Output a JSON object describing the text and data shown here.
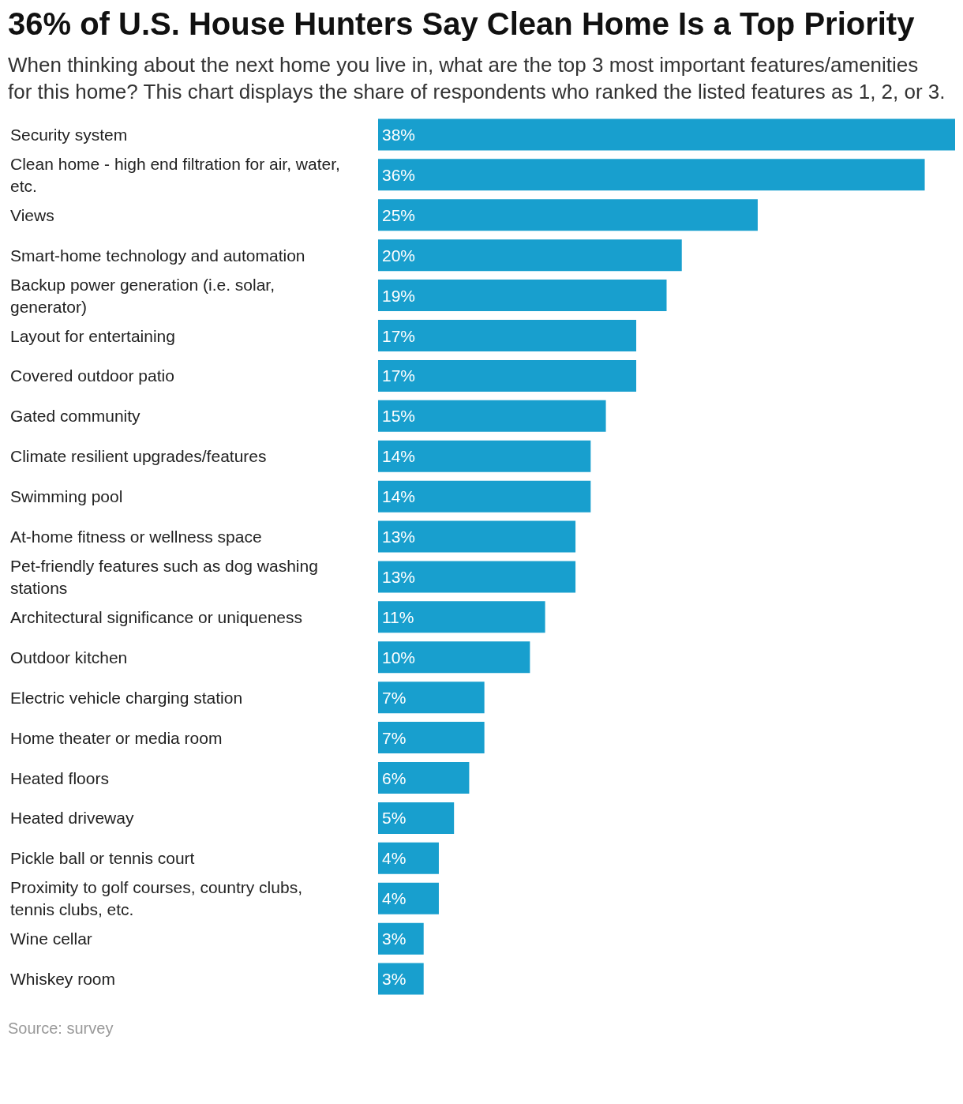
{
  "chart_data": {
    "type": "bar",
    "orientation": "horizontal",
    "title": "36% of U.S. House Hunters Say Clean Home Is a Top Priority",
    "subtitle": "When thinking about the next home you live in, what are the top 3 most important features/amenities for this home? This chart displays the share of respondents who ranked the listed features as 1, 2, or 3.",
    "categories": [
      "Security system",
      "Clean home - high end filtration for air, water, etc.",
      "Views",
      "Smart-home technology and automation",
      "Backup power generation (i.e. solar, generator)",
      "Layout for entertaining",
      "Covered outdoor patio",
      "Gated community",
      "Climate resilient upgrades/features",
      "Swimming pool",
      "At-home fitness or wellness space",
      "Pet-friendly features such as dog washing stations",
      "Architectural significance or uniqueness",
      "Outdoor kitchen",
      "Electric vehicle charging station",
      "Home theater or media room",
      "Heated floors",
      "Heated driveway",
      "Pickle ball or tennis court",
      "Proximity to golf courses, country clubs, tennis clubs, etc.",
      "Wine cellar",
      "Whiskey room"
    ],
    "values": [
      38,
      36,
      25,
      20,
      19,
      17,
      17,
      15,
      14,
      14,
      13,
      13,
      11,
      10,
      7,
      7,
      6,
      5,
      4,
      4,
      3,
      3
    ],
    "value_labels": [
      "38%",
      "36%",
      "25%",
      "20%",
      "19%",
      "17%",
      "17%",
      "15%",
      "14%",
      "14%",
      "13%",
      "13%",
      "11%",
      "10%",
      "7%",
      "7%",
      "6%",
      "5%",
      "4%",
      "4%",
      "3%",
      "3%"
    ],
    "color": "#189fce",
    "annotations": [
      "Source: survey"
    ]
  }
}
